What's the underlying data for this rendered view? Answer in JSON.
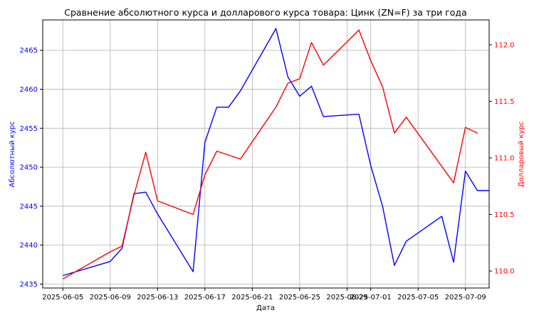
{
  "chart_data": {
    "type": "line",
    "title": "Сравнение абсолютного курса и долларового курса товара: Цинк (ZN=F) за три года",
    "xlabel": "Дата",
    "ylabel_left": "Абсолютный курс",
    "ylabel_right": "Долларовый курс",
    "grid": true,
    "x_ticks": [
      "2025-06-05",
      "2025-06-09",
      "2025-06-13",
      "2025-06-17",
      "2025-06-21",
      "2025-06-25",
      "2025-06-29",
      "2025-07-01",
      "2025-07-05",
      "2025-07-09"
    ],
    "y_left_ticks": [
      "2435",
      "2440",
      "2445",
      "2450",
      "2455",
      "2460",
      "2465"
    ],
    "y_right_ticks": [
      "110.0",
      "110.5",
      "111.0",
      "111.5",
      "112.0"
    ],
    "y_left_range": [
      2434.5,
      2468.9
    ],
    "y_right_range": [
      109.85,
      112.22
    ],
    "x_range_days": [
      -0.7,
      37.0
    ],
    "colors": {
      "left": "#0000ff",
      "right": "#ff0000"
    },
    "series": [
      {
        "name": "Абсолютный курс",
        "axis": "left",
        "points": [
          [
            1,
            2436.1
          ],
          [
            5,
            2437.9
          ],
          [
            6,
            2439.6
          ],
          [
            7,
            2446.6
          ],
          [
            8,
            2446.8
          ],
          [
            9,
            2444.0
          ],
          [
            12,
            2436.6
          ],
          [
            13,
            2453.2
          ],
          [
            14,
            2457.7
          ],
          [
            15,
            2457.7
          ],
          [
            16,
            2459.8
          ],
          [
            19,
            2467.8
          ],
          [
            20,
            2461.6
          ],
          [
            21,
            2459.1
          ],
          [
            22,
            2460.4
          ],
          [
            23,
            2456.5
          ],
          [
            26,
            2456.8
          ],
          [
            27,
            2450.2
          ],
          [
            28,
            2445.0
          ],
          [
            29,
            2437.4
          ],
          [
            30,
            2440.5
          ],
          [
            33,
            2443.7
          ],
          [
            34,
            2437.8
          ],
          [
            35,
            2449.5
          ],
          [
            36,
            2447.0
          ],
          [
            37,
            2447.0
          ]
        ]
      },
      {
        "name": "Долларовый курс",
        "axis": "right",
        "points": [
          [
            1,
            109.93
          ],
          [
            5,
            110.17
          ],
          [
            6,
            110.22
          ],
          [
            7,
            110.67
          ],
          [
            8,
            111.05
          ],
          [
            9,
            110.62
          ],
          [
            12,
            110.5
          ],
          [
            13,
            110.85
          ],
          [
            14,
            111.06
          ],
          [
            16,
            110.99
          ],
          [
            19,
            111.45
          ],
          [
            20,
            111.66
          ],
          [
            21,
            111.7
          ],
          [
            22,
            112.02
          ],
          [
            23,
            111.82
          ],
          [
            26,
            112.13
          ],
          [
            27,
            111.86
          ],
          [
            28,
            111.63
          ],
          [
            29,
            111.22
          ],
          [
            30,
            111.36
          ],
          [
            34,
            110.78
          ],
          [
            35,
            111.27
          ],
          [
            36,
            111.22
          ]
        ]
      }
    ]
  }
}
